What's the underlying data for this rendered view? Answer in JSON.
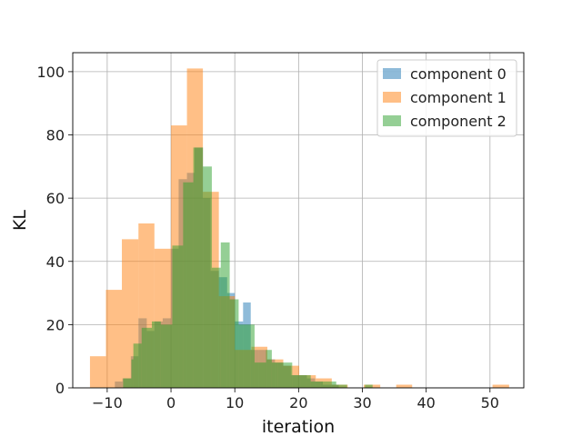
{
  "chart_data": {
    "type": "bar",
    "histogram": true,
    "xlabel": "iteration",
    "ylabel": "KL",
    "xlim": [
      -15.4,
      55.3
    ],
    "ylim": [
      0,
      106
    ],
    "xticks": [
      -10,
      0,
      10,
      20,
      30,
      40,
      50
    ],
    "yticks": [
      0,
      20,
      40,
      60,
      80,
      100
    ],
    "grid": true,
    "legend_position": "top-right",
    "series": [
      {
        "name": "component 0",
        "color": "#1f77b4",
        "bins": [
          {
            "x0": -8.8,
            "x1": -7.6,
            "count": 2
          },
          {
            "x0": -7.6,
            "x1": -6.3,
            "count": 3
          },
          {
            "x0": -6.3,
            "x1": -5.1,
            "count": 10
          },
          {
            "x0": -5.1,
            "x1": -3.8,
            "count": 22
          },
          {
            "x0": -3.8,
            "x1": -2.6,
            "count": 18
          },
          {
            "x0": -2.6,
            "x1": -1.3,
            "count": 21
          },
          {
            "x0": -1.3,
            "x1": 0.0,
            "count": 22
          },
          {
            "x0": 0.0,
            "x1": 1.2,
            "count": 44
          },
          {
            "x0": 1.2,
            "x1": 2.5,
            "count": 66
          },
          {
            "x0": 2.5,
            "x1": 3.7,
            "count": 68
          },
          {
            "x0": 3.7,
            "x1": 5.0,
            "count": 76
          },
          {
            "x0": 5.0,
            "x1": 6.2,
            "count": 60
          },
          {
            "x0": 6.2,
            "x1": 7.5,
            "count": 37
          },
          {
            "x0": 7.5,
            "x1": 8.8,
            "count": 35
          },
          {
            "x0": 8.8,
            "x1": 10.0,
            "count": 30
          },
          {
            "x0": 10.0,
            "x1": 11.3,
            "count": 21
          },
          {
            "x0": 11.3,
            "x1": 12.5,
            "count": 27
          },
          {
            "x0": 12.5,
            "x1": 13.8,
            "count": 12
          },
          {
            "x0": 13.8,
            "x1": 15.0,
            "count": 12
          },
          {
            "x0": 15.0,
            "x1": 16.3,
            "count": 9
          },
          {
            "x0": 16.3,
            "x1": 17.6,
            "count": 8
          },
          {
            "x0": 17.6,
            "x1": 18.8,
            "count": 7
          },
          {
            "x0": 18.8,
            "x1": 20.1,
            "count": 4
          },
          {
            "x0": 20.1,
            "x1": 21.3,
            "count": 4
          },
          {
            "x0": 21.3,
            "x1": 22.6,
            "count": 3
          },
          {
            "x0": 22.6,
            "x1": 23.8,
            "count": 2
          },
          {
            "x0": 23.8,
            "x1": 25.1,
            "count": 1
          },
          {
            "x0": 25.1,
            "x1": 26.3,
            "count": 1
          }
        ]
      },
      {
        "name": "component 1",
        "color": "#ff7f0e",
        "bins": [
          {
            "x0": -12.7,
            "x1": -10.2,
            "count": 10
          },
          {
            "x0": -10.2,
            "x1": -7.7,
            "count": 31
          },
          {
            "x0": -7.7,
            "x1": -5.1,
            "count": 47
          },
          {
            "x0": -5.1,
            "x1": -2.6,
            "count": 52
          },
          {
            "x0": -2.6,
            "x1": 0.0,
            "count": 44
          },
          {
            "x0": 0.0,
            "x1": 2.5,
            "count": 83
          },
          {
            "x0": 2.5,
            "x1": 5.0,
            "count": 101
          },
          {
            "x0": 5.0,
            "x1": 7.5,
            "count": 62
          },
          {
            "x0": 7.5,
            "x1": 10.0,
            "count": 29
          },
          {
            "x0": 10.0,
            "x1": 12.6,
            "count": 12
          },
          {
            "x0": 12.6,
            "x1": 15.1,
            "count": 13
          },
          {
            "x0": 15.1,
            "x1": 17.6,
            "count": 9
          },
          {
            "x0": 17.6,
            "x1": 20.1,
            "count": 7
          },
          {
            "x0": 20.1,
            "x1": 22.7,
            "count": 4
          },
          {
            "x0": 22.7,
            "x1": 25.2,
            "count": 3
          },
          {
            "x0": 25.2,
            "x1": 27.7,
            "count": 1
          },
          {
            "x0": 27.7,
            "x1": 30.2,
            "count": 0
          },
          {
            "x0": 30.2,
            "x1": 32.8,
            "count": 1
          },
          {
            "x0": 32.8,
            "x1": 35.3,
            "count": 0
          },
          {
            "x0": 35.3,
            "x1": 37.8,
            "count": 1
          },
          {
            "x0": 37.8,
            "x1": 40.3,
            "count": 0
          },
          {
            "x0": 40.3,
            "x1": 42.9,
            "count": 0
          },
          {
            "x0": 42.9,
            "x1": 45.4,
            "count": 0
          },
          {
            "x0": 45.4,
            "x1": 47.9,
            "count": 0
          },
          {
            "x0": 47.9,
            "x1": 50.4,
            "count": 0
          },
          {
            "x0": 50.4,
            "x1": 53.0,
            "count": 1
          }
        ]
      },
      {
        "name": "component 2",
        "color": "#2ca02c",
        "bins": [
          {
            "x0": -7.5,
            "x1": -6.2,
            "count": 3
          },
          {
            "x0": -6.2,
            "x1": -5.9,
            "count": 9
          },
          {
            "x0": -5.9,
            "x1": -4.6,
            "count": 14
          },
          {
            "x0": -4.6,
            "x1": -3.0,
            "count": 19
          },
          {
            "x0": -3.0,
            "x1": -1.6,
            "count": 21
          },
          {
            "x0": -1.6,
            "x1": 0.2,
            "count": 20
          },
          {
            "x0": 0.2,
            "x1": 1.9,
            "count": 45
          },
          {
            "x0": 1.9,
            "x1": 3.5,
            "count": 65
          },
          {
            "x0": 3.5,
            "x1": 5.0,
            "count": 76
          },
          {
            "x0": 5.0,
            "x1": 6.4,
            "count": 70
          },
          {
            "x0": 6.4,
            "x1": 7.8,
            "count": 38
          },
          {
            "x0": 7.8,
            "x1": 9.2,
            "count": 46
          },
          {
            "x0": 9.2,
            "x1": 10.6,
            "count": 28
          },
          {
            "x0": 10.6,
            "x1": 13.1,
            "count": 20
          },
          {
            "x0": 13.1,
            "x1": 14.9,
            "count": 8
          },
          {
            "x0": 14.9,
            "x1": 15.8,
            "count": 12
          },
          {
            "x0": 15.8,
            "x1": 16.7,
            "count": 8
          },
          {
            "x0": 16.7,
            "x1": 19.0,
            "count": 8
          },
          {
            "x0": 19.0,
            "x1": 20.3,
            "count": 4
          },
          {
            "x0": 20.3,
            "x1": 21.9,
            "count": 4
          },
          {
            "x0": 21.9,
            "x1": 23.4,
            "count": 2
          },
          {
            "x0": 23.4,
            "x1": 25.9,
            "count": 2
          },
          {
            "x0": 25.9,
            "x1": 27.6,
            "count": 1
          },
          {
            "x0": 27.6,
            "x1": 30.4,
            "count": 0
          },
          {
            "x0": 30.4,
            "x1": 31.6,
            "count": 1
          }
        ]
      }
    ]
  }
}
